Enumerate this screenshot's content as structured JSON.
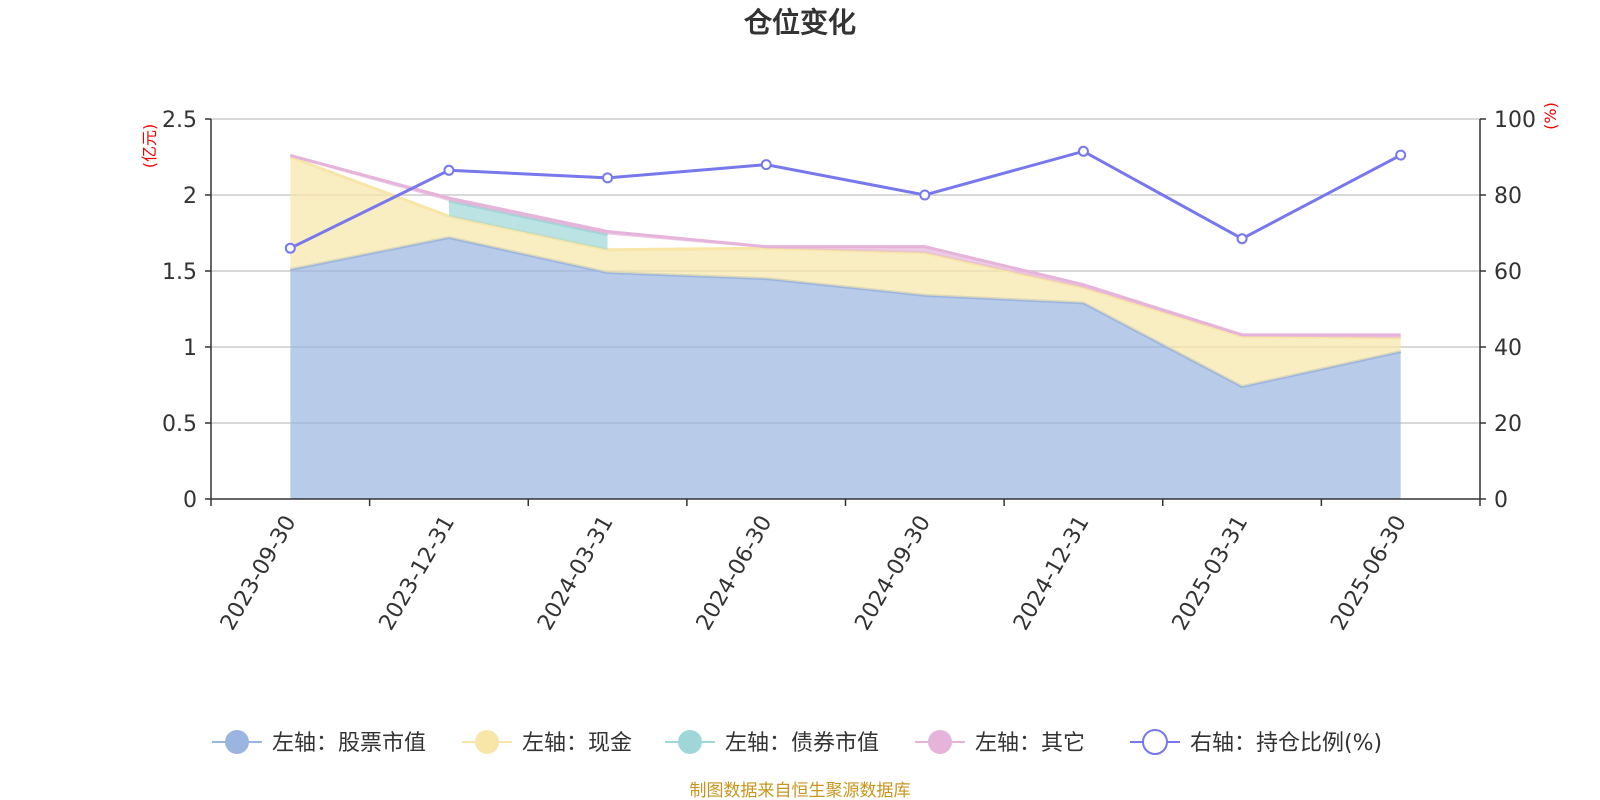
{
  "colors": {
    "stock": "#9ab5e0",
    "cash": "#f7e6a8",
    "bond": "#9fd7d8",
    "other": "#e6b3da",
    "ratio": "#7777ee",
    "axis_unit": "#ee0000",
    "source": "#c8961e"
  },
  "chart_data": {
    "type": "area",
    "title": "仓位变化",
    "categories": [
      "2023-09-30",
      "2023-12-31",
      "2024-03-31",
      "2024-06-30",
      "2024-09-30",
      "2024-12-31",
      "2025-03-31",
      "2025-06-30"
    ],
    "left_axis": {
      "unit": "(亿元)",
      "ylim": [
        0,
        2.5
      ],
      "ticks": [
        "0",
        "0.5",
        "1",
        "1.5",
        "2",
        "2.5"
      ]
    },
    "right_axis": {
      "unit": "(%)",
      "ylim": [
        0,
        100
      ],
      "ticks": [
        "0",
        "20",
        "40",
        "60",
        "80",
        "100"
      ]
    },
    "grid": true,
    "legend_position": "bottom",
    "series": [
      {
        "key": "stock",
        "name": "左轴：股票市值",
        "axis": "left",
        "values": [
          1.51,
          1.72,
          1.49,
          1.45,
          1.34,
          1.29,
          0.74,
          0.97
        ]
      },
      {
        "key": "cash",
        "name": "左轴：现金",
        "axis": "left",
        "values": [
          0.74,
          0.14,
          0.15,
          0.2,
          0.28,
          0.1,
          0.33,
          0.09
        ]
      },
      {
        "key": "bond",
        "name": "左轴：债券市值",
        "axis": "left",
        "values": [
          0,
          0.1,
          0.1,
          0,
          0,
          0,
          0,
          0
        ]
      },
      {
        "key": "other",
        "name": "左轴：其它",
        "axis": "left",
        "values": [
          0.01,
          0.02,
          0.02,
          0.01,
          0.04,
          0.02,
          0.01,
          0.02
        ]
      },
      {
        "key": "ratio",
        "name": "右轴：持仓比例(%)",
        "axis": "right",
        "values": [
          66,
          86.5,
          84.5,
          88,
          80,
          91.5,
          68.5,
          90.5
        ]
      }
    ]
  },
  "footer": {
    "source": "制图数据来自恒生聚源数据库"
  }
}
